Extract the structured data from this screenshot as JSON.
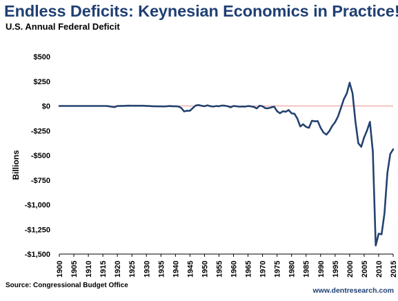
{
  "header": {
    "title": "Endless Deficits: Keynesian Economics in Practice!",
    "subtitle": "U.S. Annual Federal Deficit"
  },
  "footer": {
    "source": "Source: Congressional Budget Office",
    "website": "www.dentresearch.com"
  },
  "colors": {
    "title": "#1f3f73",
    "line": "#24426f",
    "zero_line": "#e0706a"
  },
  "chart_data": {
    "type": "line",
    "title": "Endless Deficits: Keynesian Economics in Practice!",
    "subtitle": "U.S. Annual Federal Deficit",
    "xlabel": "",
    "ylabel": "Billions",
    "xlim": [
      1900,
      2015
    ],
    "ylim": [
      -1500,
      500
    ],
    "y_ticks": [
      500,
      250,
      0,
      -250,
      -500,
      -750,
      -1000,
      -1250,
      -1500
    ],
    "y_tick_labels": [
      "$500",
      "$250",
      "$0",
      "-$250",
      "-$500",
      "-$750",
      "-$1,000",
      "-$1,250",
      "-$1,500"
    ],
    "x_ticks": [
      1900,
      1905,
      1910,
      1915,
      1920,
      1925,
      1930,
      1935,
      1940,
      1945,
      1950,
      1955,
      1960,
      1965,
      1970,
      1975,
      1980,
      1985,
      1990,
      1995,
      2000,
      2005,
      2010,
      2015
    ],
    "x_tick_labels": [
      "1900",
      "1905",
      "1910",
      "1915",
      "1920",
      "1925",
      "1930",
      "1935",
      "1940",
      "1945",
      "1950",
      "1955",
      "1960",
      "1965",
      "1970",
      "1975",
      "1980",
      "1985",
      "1990",
      "1995",
      "2000",
      "2005",
      "2010",
      "2015"
    ],
    "grid": false,
    "zero_line": true,
    "series": [
      {
        "x": [
          1900,
          1901,
          1902,
          1903,
          1904,
          1905,
          1906,
          1907,
          1908,
          1909,
          1910,
          1911,
          1912,
          1913,
          1914,
          1915,
          1916,
          1917,
          1918,
          1919,
          1920,
          1921,
          1922,
          1923,
          1924,
          1925,
          1926,
          1927,
          1928,
          1929,
          1930,
          1931,
          1932,
          1933,
          1934,
          1935,
          1936,
          1937,
          1938,
          1939,
          1940,
          1941,
          1942,
          1943,
          1944,
          1945,
          1946,
          1947,
          1948,
          1949,
          1950,
          1951,
          1952,
          1953,
          1954,
          1955,
          1956,
          1957,
          1958,
          1959,
          1960,
          1961,
          1962,
          1963,
          1964,
          1965,
          1966,
          1967,
          1968,
          1969,
          1970,
          1971,
          1972,
          1973,
          1974,
          1975,
          1976,
          1977,
          1978,
          1979,
          1980,
          1981,
          1982,
          1983,
          1984,
          1985,
          1986,
          1987,
          1988,
          1989,
          1990,
          1991,
          1992,
          1993,
          1994,
          1995,
          1996,
          1997,
          1998,
          1999,
          2000,
          2001,
          2002,
          2003,
          2004,
          2005,
          2006,
          2007,
          2008,
          2009,
          2010,
          2011,
          2012,
          2013,
          2014,
          2015
        ],
        "values": [
          0,
          0,
          0,
          0,
          0,
          0,
          0,
          0,
          0,
          0,
          0,
          0,
          0,
          0,
          0,
          0,
          0,
          -2,
          -8,
          -12,
          0,
          1,
          1,
          2,
          3,
          2,
          2,
          2,
          2,
          2,
          1,
          -1,
          -3,
          -3,
          -4,
          -4,
          -5,
          -3,
          -1,
          -3,
          -3,
          -5,
          -20,
          -55,
          -48,
          -48,
          -20,
          5,
          10,
          2,
          -3,
          6,
          -2,
          -6,
          -1,
          -3,
          4,
          3,
          -3,
          -13,
          0,
          -3,
          -7,
          -5,
          -6,
          -1,
          -4,
          -9,
          -25,
          3,
          -3,
          -23,
          -23,
          -15,
          -6,
          -53,
          -74,
          -54,
          -59,
          -41,
          -74,
          -79,
          -128,
          -208,
          -185,
          -212,
          -221,
          -150,
          -155,
          -153,
          -221,
          -269,
          -290,
          -255,
          -203,
          -164,
          -107,
          -22,
          69,
          126,
          236,
          128,
          -158,
          -378,
          -413,
          -318,
          -248,
          -161,
          -459,
          -1413,
          -1294,
          -1300,
          -1087,
          -680,
          -485,
          -439
        ]
      }
    ],
    "source": "Source: Congressional Budget Office"
  }
}
